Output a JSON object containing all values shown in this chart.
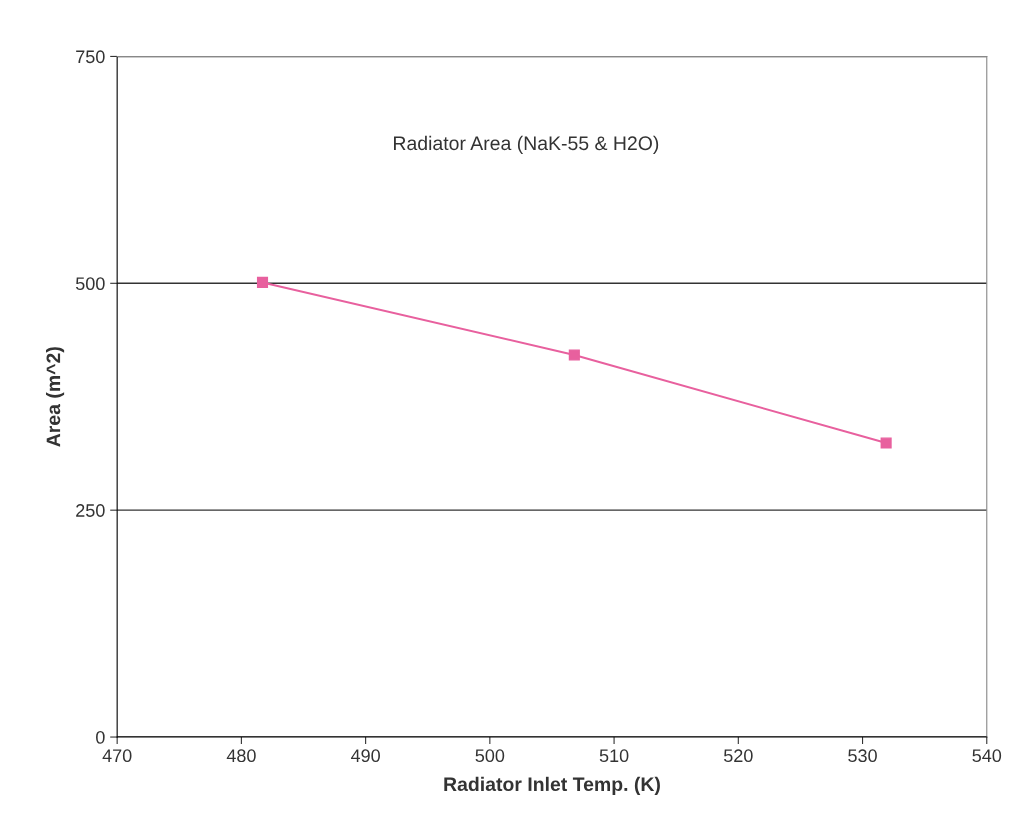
{
  "chart_data": {
    "type": "line",
    "title": "Radiator Area (NaK-55 & H2O)",
    "xlabel": "Radiator Inlet Temp. (K)",
    "ylabel": "Area (m^2)",
    "x": [
      481.7,
      506.8,
      531.9
    ],
    "series": [
      {
        "color": "#e8609e",
        "values": [
          501,
          421,
          324
        ]
      }
    ],
    "xlim": [
      470,
      540
    ],
    "xticks": [
      470,
      480,
      490,
      500,
      510,
      520,
      530,
      540
    ],
    "ylim": [
      0,
      750
    ],
    "yticks": [
      0,
      250,
      500,
      750
    ],
    "grid": "y",
    "marker": "square",
    "line_style": "solid",
    "legend": false
  }
}
